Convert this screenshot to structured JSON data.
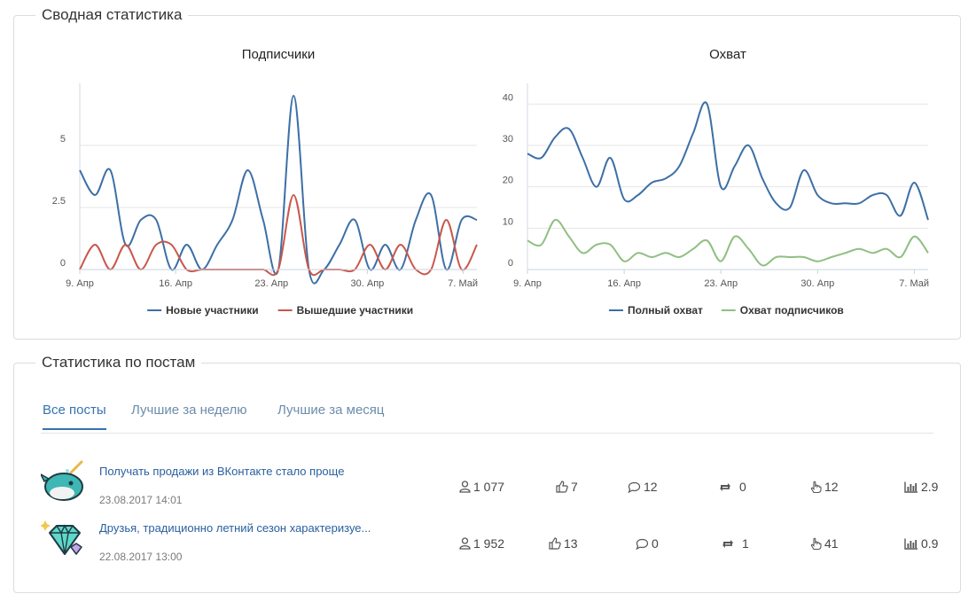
{
  "summary": {
    "title": "Сводная статистика",
    "subscribers_chart": {
      "title": "Подписчики",
      "ticks_y": [
        "0",
        "2.5",
        "5"
      ],
      "ticks_x": [
        "9. Апр",
        "16. Апр",
        "23. Апр",
        "30. Апр",
        "7. Май"
      ],
      "legend": [
        "Новые участники",
        "Вышедшие участники"
      ]
    },
    "reach_chart": {
      "title": "Охват",
      "ticks_y": [
        "0",
        "10",
        "20",
        "30",
        "40"
      ],
      "ticks_x": [
        "9. Апр",
        "16. Апр",
        "23. Апр",
        "30. Апр",
        "7. Май"
      ],
      "legend": [
        "Полный охват",
        "Охват подписчиков"
      ]
    }
  },
  "chart_data": [
    {
      "type": "line",
      "title": "Подписчики",
      "x_start": "2017-04-09",
      "x_end": "2017-05-08",
      "ylim": [
        0,
        7.5
      ],
      "series": [
        {
          "name": "Новые участники",
          "color": "#3d6fa6",
          "values": [
            4,
            3,
            4,
            1,
            2,
            2,
            0,
            1,
            0,
            1,
            2,
            4,
            2,
            0,
            7,
            0,
            0,
            1,
            2,
            0,
            1,
            0,
            2,
            3,
            0,
            2,
            2
          ]
        },
        {
          "name": "Вышедшие участники",
          "color": "#c9574a",
          "values": [
            0,
            1,
            0,
            1,
            0,
            1,
            1,
            0,
            0,
            0,
            0,
            0,
            0,
            0,
            3,
            0,
            0,
            0,
            0,
            1,
            0,
            1,
            0,
            0,
            2,
            0,
            1
          ]
        }
      ]
    },
    {
      "type": "line",
      "title": "Охват",
      "x_start": "2017-04-09",
      "x_end": "2017-05-08",
      "ylim": [
        0,
        45
      ],
      "series": [
        {
          "name": "Полный охват",
          "color": "#3d6fa6",
          "values": [
            28,
            27,
            32,
            34,
            27,
            20,
            27,
            17,
            18,
            21,
            22,
            25,
            33,
            40,
            20,
            25,
            30,
            22,
            16,
            15,
            24,
            18,
            16,
            16,
            16,
            18,
            18,
            13,
            21,
            12
          ]
        },
        {
          "name": "Охват подписчиков",
          "color": "#8fbf82",
          "values": [
            7,
            6,
            12,
            8,
            4,
            6,
            6,
            2,
            4,
            3,
            4,
            3,
            5,
            7,
            2,
            8,
            5,
            1,
            3,
            3,
            3,
            2,
            3,
            4,
            5,
            4,
            5,
            3,
            8,
            4
          ]
        }
      ]
    }
  ],
  "posts_panel": {
    "title": "Статистика по постам",
    "tabs": [
      "Все посты",
      "Лучшие за неделю",
      "Лучшие за месяц"
    ],
    "active_tab": 0,
    "posts": [
      {
        "title": "Получать продажи из ВКонтакте стало проще",
        "date": "23.08.2017 14:01",
        "avatar": "narwhal-icon",
        "views": "1 077",
        "likes": "7",
        "comments": "12",
        "reposts": "0",
        "clicks": "12",
        "er": "2.9"
      },
      {
        "title": "Друзья, традиционно летний сезон характеризуе...",
        "date": "22.08.2017 13:00",
        "avatar": "diamond-icon",
        "views": "1 952",
        "likes": "13",
        "comments": "0",
        "reposts": "1",
        "clicks": "41",
        "er": "0.9"
      }
    ]
  }
}
